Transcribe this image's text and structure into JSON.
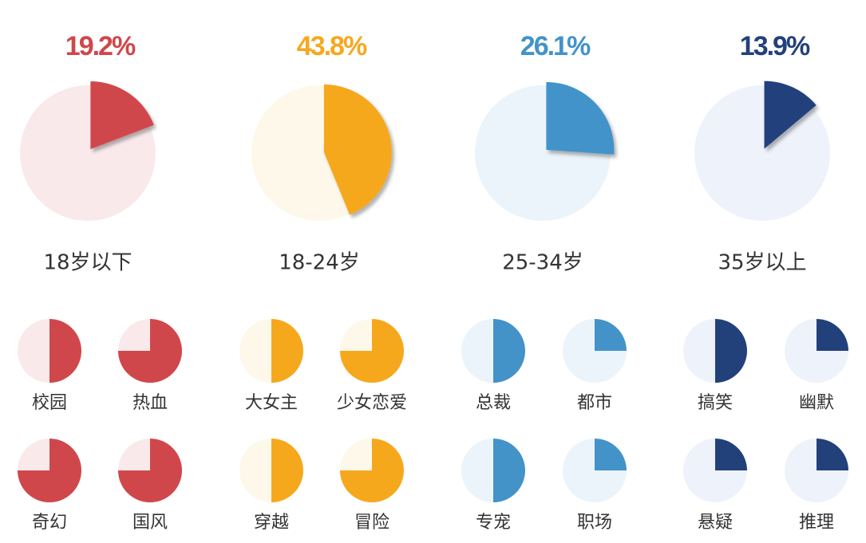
{
  "chart_data": [
    {
      "type": "pie",
      "categories": [
        "18岁以下"
      ],
      "values": [
        19.2
      ],
      "value_labels": [
        "19.2%"
      ],
      "color": "#d0474b",
      "background": "#f9e9eb"
    },
    {
      "type": "pie",
      "categories": [
        "18-24岁"
      ],
      "values": [
        43.8
      ],
      "value_labels": [
        "43.8%"
      ],
      "color": "#f6a81d",
      "background": "#fdf8ea"
    },
    {
      "type": "pie",
      "categories": [
        "25-34岁"
      ],
      "values": [
        26.1
      ],
      "value_labels": [
        "26.1%"
      ],
      "color": "#4393c9",
      "background": "#ebf4fa"
    },
    {
      "type": "pie",
      "categories": [
        "35岁以上"
      ],
      "values": [
        13.9
      ],
      "value_labels": [
        "13.9%"
      ],
      "color": "#22417b",
      "background": "#eef2fb"
    },
    {
      "type": "pie",
      "categories": [
        "校园",
        "热血",
        "奇幻",
        "国风"
      ],
      "values": [
        50,
        75,
        75,
        75
      ],
      "color": "#d0474b",
      "background": "#f9e9eb"
    },
    {
      "type": "pie",
      "categories": [
        "大女主",
        "少女恋爱",
        "穿越",
        "冒险"
      ],
      "values": [
        50,
        75,
        50,
        75
      ],
      "color": "#f6a81d",
      "background": "#fdf8ea"
    },
    {
      "type": "pie",
      "categories": [
        "总裁",
        "都市",
        "专宠",
        "职场"
      ],
      "values": [
        50,
        25,
        50,
        25
      ],
      "color": "#4393c9",
      "background": "#ebf4fa"
    },
    {
      "type": "pie",
      "categories": [
        "搞笑",
        "幽默",
        "悬疑",
        "推理"
      ],
      "values": [
        50,
        25,
        25,
        25
      ],
      "color": "#22417b",
      "background": "#eef2fb"
    }
  ]
}
